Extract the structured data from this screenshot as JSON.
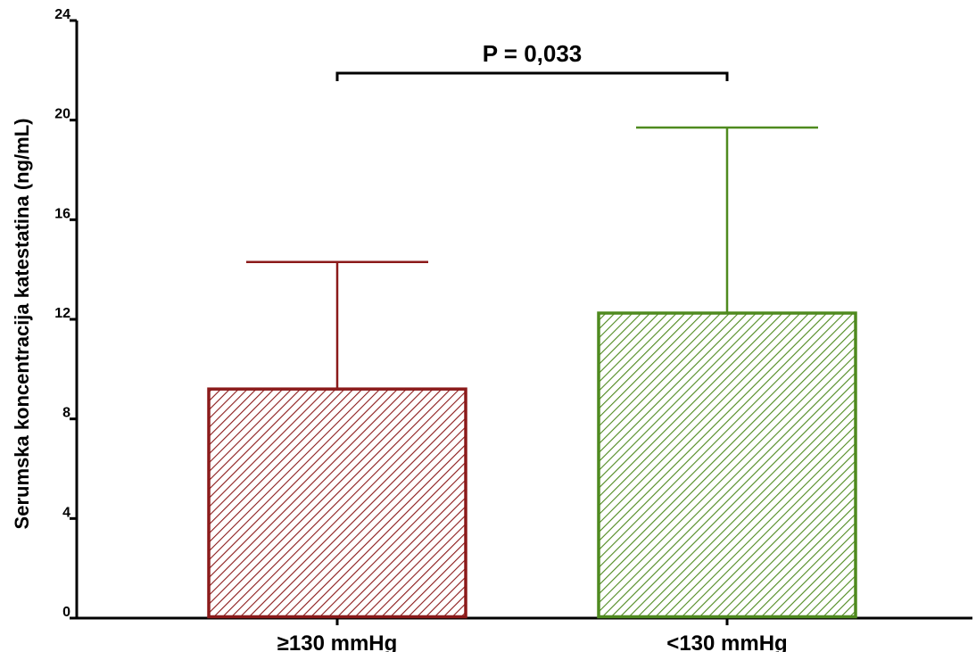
{
  "chart_data": {
    "type": "bar",
    "categories": [
      "≥130 mmHg",
      "<130 mmHg"
    ],
    "values": [
      9.2,
      12.25
    ],
    "error_upper": [
      14.3,
      19.7
    ],
    "bar_colors": [
      "#8b1a1a",
      "#4f8a1f"
    ],
    "bar_fill": "diagonal-hatch",
    "xlabel": "",
    "ylabel": "Serumska koncentracija katestatina (ng/mL)",
    "ylim": [
      0,
      24
    ],
    "yticks": [
      "0",
      "4",
      "8",
      "12",
      "16",
      "20",
      "24"
    ],
    "grid": false,
    "annotation": {
      "text": "P = 0,033",
      "between": [
        0,
        1
      ]
    }
  }
}
